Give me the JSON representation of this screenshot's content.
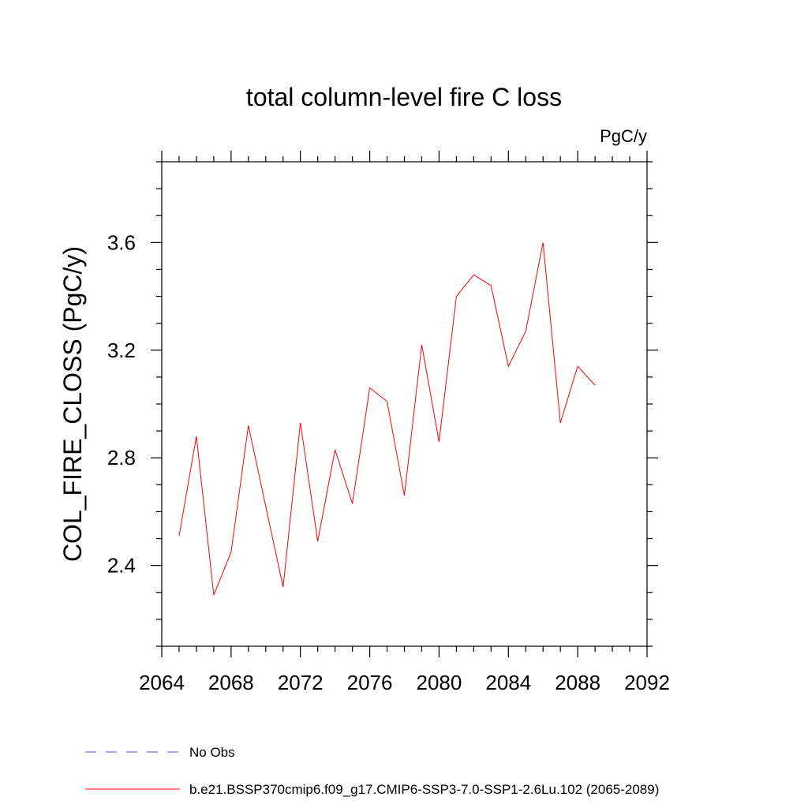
{
  "chart_data": {
    "type": "line",
    "title": "total column-level fire C loss",
    "units": "PgC/y",
    "xlabel": "",
    "ylabel": "COL_FIRE_CLOSS  (PgC/y)",
    "xlim": [
      2064,
      2092
    ],
    "ylim": [
      2.1,
      3.9
    ],
    "x_ticks": [
      2064,
      2068,
      2072,
      2076,
      2080,
      2084,
      2088,
      2092
    ],
    "x_tick_labels": [
      "2064",
      "2068",
      "2072",
      "2076",
      "2080",
      "2084",
      "2088",
      "2092"
    ],
    "y_ticks": [
      2.4,
      2.8,
      3.2,
      3.6
    ],
    "y_tick_labels": [
      "2.4",
      "2.8",
      "3.2",
      "3.6"
    ],
    "grid": false,
    "legend_position": "bottom",
    "legend": [
      {
        "label": "No Obs",
        "color": "#5a4fcf",
        "style": "dashed"
      },
      {
        "label": "b.e21.BSSP370cmip6.f09_g17.CMIP6-SSP3-7.0-SSP1-2.6Lu.102 (2065-2089)",
        "color": "#ff0000",
        "style": "solid"
      }
    ],
    "series": [
      {
        "name": "b.e21.BSSP370cmip6.f09_g17.CMIP6-SSP3-7.0-SSP1-2.6Lu.102 (2065-2089)",
        "color": "#ff0000",
        "x": [
          2065,
          2066,
          2067,
          2068,
          2069,
          2070,
          2071,
          2072,
          2073,
          2074,
          2075,
          2076,
          2077,
          2078,
          2079,
          2080,
          2081,
          2082,
          2083,
          2084,
          2085,
          2086,
          2087,
          2088,
          2089
        ],
        "y": [
          2.51,
          2.88,
          2.29,
          2.45,
          2.92,
          2.62,
          2.32,
          2.93,
          2.49,
          2.83,
          2.63,
          3.06,
          3.01,
          2.66,
          3.22,
          2.86,
          3.4,
          3.48,
          3.44,
          3.14,
          3.27,
          3.6,
          2.93,
          3.14,
          3.07
        ]
      }
    ]
  }
}
